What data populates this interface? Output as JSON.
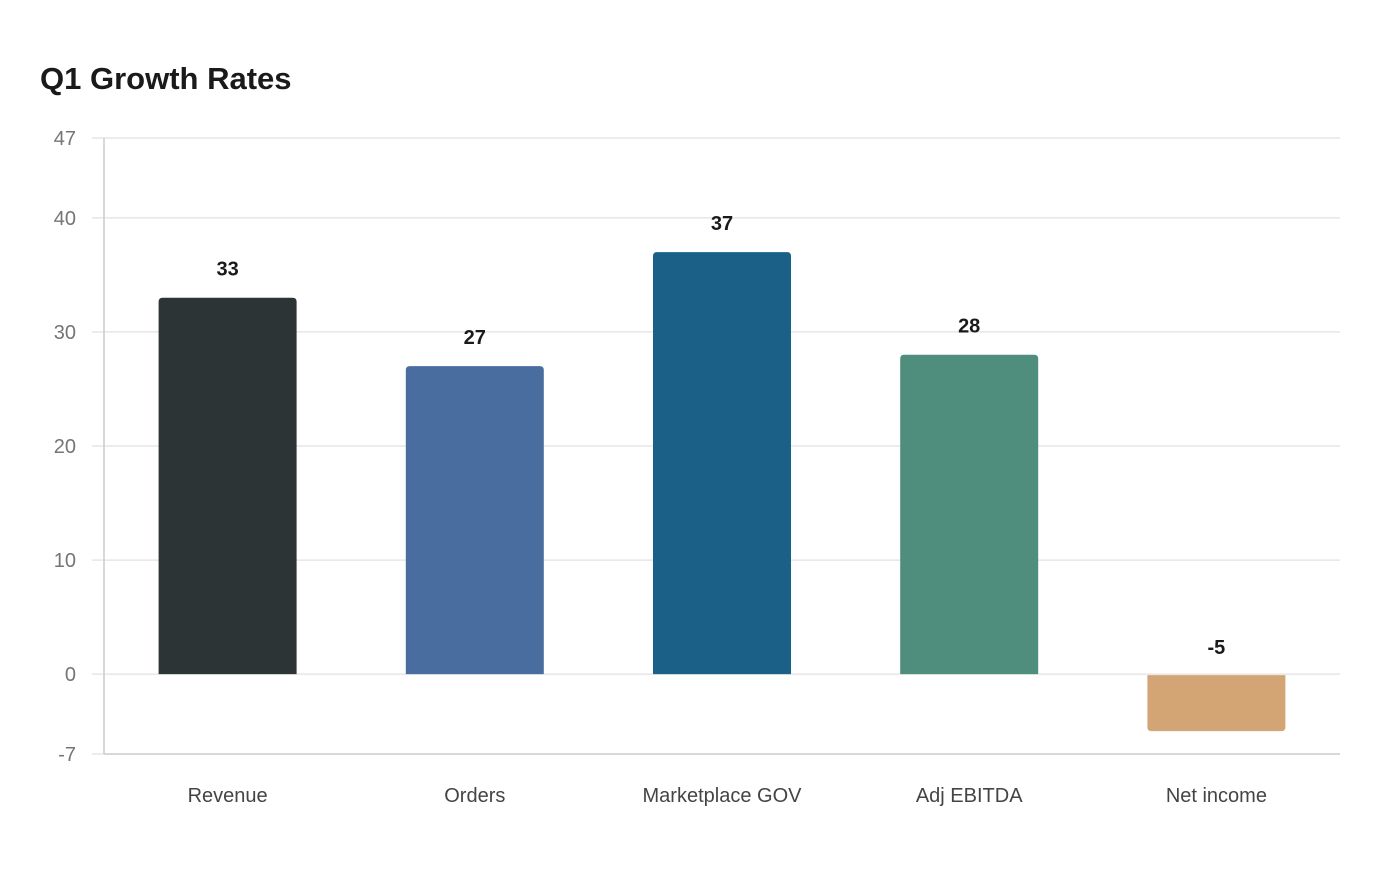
{
  "chart_data": {
    "type": "bar",
    "title": "Q1 Growth Rates",
    "categories": [
      "Revenue",
      "Orders",
      "Marketplace GOV",
      "Adj EBITDA",
      "Net income"
    ],
    "values": [
      33,
      27,
      37,
      28,
      -5
    ],
    "value_labels": [
      "33",
      "27",
      "37",
      "28",
      "-5"
    ],
    "bar_colors": [
      "#2d3436",
      "#4a6da0",
      "#1a6087",
      "#4f8e7c",
      "#d4a574"
    ],
    "ylim": [
      -7,
      47
    ],
    "yticks": [
      -7,
      0,
      10,
      20,
      30,
      40,
      47
    ],
    "ytick_labels": [
      "-7",
      "0",
      "10",
      "20",
      "30",
      "40",
      "47"
    ],
    "xlabel": "",
    "ylabel": "",
    "grid": true,
    "legend": "none"
  }
}
